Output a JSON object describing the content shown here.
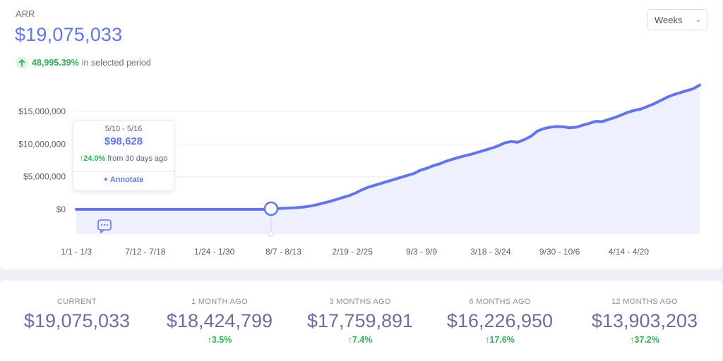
{
  "header": {
    "metric_name": "ARR",
    "metric_value": "$19,075,033",
    "change_value": "48,995.39%",
    "change_suffix": "in selected period",
    "period_select": "Weeks"
  },
  "tooltip": {
    "period": "5/10 - 5/16",
    "value": "$98,628",
    "change": "24.0%",
    "change_suffix": "from 30 days ago",
    "annotate_label": "+ Annotate"
  },
  "colors": {
    "line": "#6475e8",
    "fill": "#eef0fd",
    "positive": "#2fb354"
  },
  "icons": {
    "change": "arrow-up-icon",
    "comment": "comment-icon",
    "select": "chevron-down-icon"
  },
  "chart_data": {
    "type": "area",
    "x_ticks": [
      "1/1 - 1/3",
      "7/12 - 7/18",
      "1/24 - 1/30",
      "8/7 - 8/13",
      "2/19 - 2/25",
      "9/3 - 9/9",
      "3/18 - 3/24",
      "9/30 - 10/6",
      "4/14 - 4/20"
    ],
    "y_ticks": [
      "$0",
      "$5,000,000",
      "$10,000,000",
      "$15,000,000"
    ],
    "y_tick_values": [
      0,
      5000000,
      10000000,
      15000000
    ],
    "ylim": [
      -3800000,
      20000000
    ],
    "grid": true,
    "series": [
      {
        "values": [
          0,
          0,
          0,
          0,
          0,
          0,
          0,
          0,
          0,
          0,
          0,
          0,
          0,
          0,
          0,
          0,
          0,
          0,
          0,
          0,
          0,
          0,
          0,
          0,
          0,
          0,
          0,
          0,
          0,
          0,
          98628,
          120000,
          160000,
          200000,
          260000,
          350000,
          500000,
          700000,
          950000,
          1200000,
          1500000,
          1800000,
          2100000,
          2500000,
          3000000,
          3400000,
          3700000,
          4000000,
          4300000,
          4600000,
          4900000,
          5200000,
          5500000,
          6000000,
          6300000,
          6700000,
          7000000,
          7400000,
          7700000,
          8000000,
          8250000,
          8500000,
          8800000,
          9100000,
          9400000,
          9750000,
          10200000,
          10400000,
          10300000,
          10700000,
          11200000,
          12000000,
          12400000,
          12600000,
          12700000,
          12650000,
          12500000,
          12600000,
          12900000,
          13200000,
          13500000,
          13450000,
          13800000,
          14100000,
          14500000,
          14900000,
          15200000,
          15400000,
          15800000,
          16200000,
          16700000,
          17200000,
          17600000,
          17900000,
          18200000,
          18500000,
          19075033
        ]
      }
    ],
    "highlight_index": 30
  },
  "stats": [
    {
      "label": "CURRENT",
      "value": "$19,075,033",
      "change": ""
    },
    {
      "label": "1 MONTH AGO",
      "value": "$18,424,799",
      "change": "3.5%"
    },
    {
      "label": "3 MONTHS AGO",
      "value": "$17,759,891",
      "change": "7.4%"
    },
    {
      "label": "6 MONTHS AGO",
      "value": "$16,226,950",
      "change": "17.6%"
    },
    {
      "label": "12 MONTHS AGO",
      "value": "$13,903,203",
      "change": "37.2%"
    }
  ]
}
